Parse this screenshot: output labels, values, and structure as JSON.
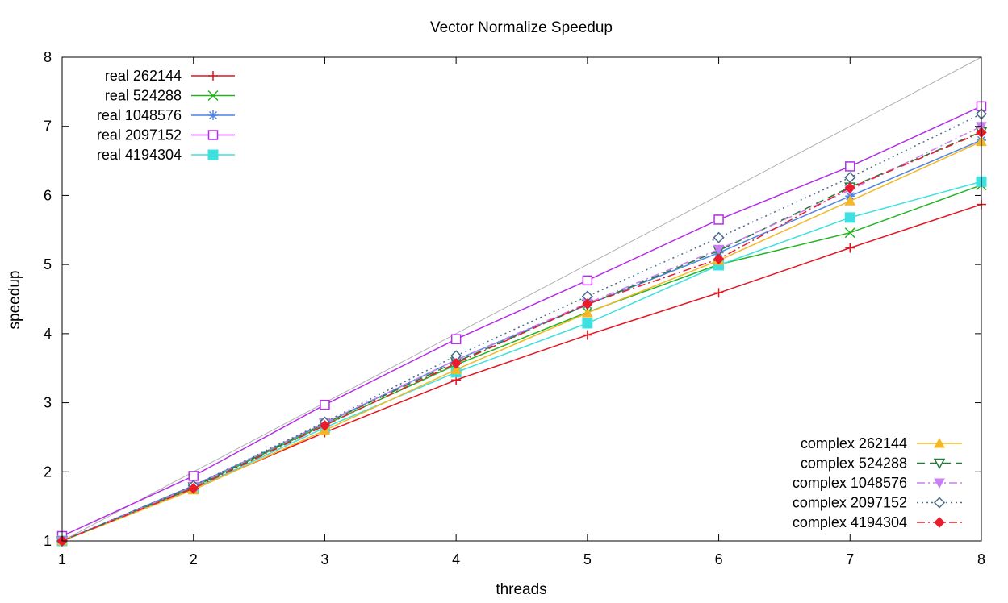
{
  "chart_data": {
    "type": "line",
    "title": "Vector Normalize Speedup",
    "xlabel": "threads",
    "ylabel": "speedup",
    "xlim": [
      1,
      8
    ],
    "ylim": [
      1,
      8
    ],
    "x": [
      1,
      2,
      3,
      4,
      5,
      6,
      7,
      8
    ],
    "xticks": [
      "1",
      "2",
      "3",
      "4",
      "5",
      "6",
      "7",
      "8"
    ],
    "yticks": [
      "1",
      "2",
      "3",
      "4",
      "5",
      "6",
      "7",
      "8"
    ],
    "grid": false,
    "reference_line": {
      "from": [
        1,
        1
      ],
      "to": [
        8,
        8
      ],
      "color": "#b0b0b0"
    },
    "legends": [
      {
        "position": "top-left",
        "series": [
          0,
          1,
          2,
          3,
          4
        ]
      },
      {
        "position": "bottom-right",
        "series": [
          5,
          6,
          7,
          8,
          9
        ]
      }
    ],
    "series": [
      {
        "name": "real 262144",
        "color": "#e3141d",
        "marker": "plus",
        "dash": "solid",
        "values": [
          1.0,
          1.76,
          2.57,
          3.33,
          3.98,
          4.59,
          5.24,
          5.87
        ]
      },
      {
        "name": "real 524288",
        "color": "#22b322",
        "marker": "cross",
        "dash": "solid",
        "values": [
          1.0,
          1.78,
          2.68,
          3.55,
          4.31,
          5.0,
          5.46,
          6.15
        ]
      },
      {
        "name": "real 1048576",
        "color": "#4d84e3",
        "marker": "star",
        "dash": "solid",
        "values": [
          1.0,
          1.8,
          2.7,
          3.62,
          4.42,
          5.17,
          5.99,
          6.8
        ]
      },
      {
        "name": "real 2097152",
        "color": "#b32ee6",
        "marker": "square-open",
        "dash": "solid",
        "values": [
          1.07,
          1.94,
          2.97,
          3.92,
          4.77,
          5.65,
          6.42,
          7.29
        ]
      },
      {
        "name": "real 4194304",
        "color": "#3fe0e0",
        "marker": "square-filled",
        "dash": "solid",
        "values": [
          1.0,
          1.75,
          2.64,
          3.44,
          4.15,
          4.99,
          5.68,
          6.2
        ]
      },
      {
        "name": "complex 262144",
        "color": "#f5b724",
        "marker": "triangle-up",
        "dash": "solid",
        "values": [
          1.0,
          1.74,
          2.6,
          3.48,
          4.3,
          5.06,
          5.92,
          6.78
        ]
      },
      {
        "name": "complex 524288",
        "color": "#237a3a",
        "marker": "triangle-down-open",
        "dash": "dashed",
        "values": [
          1.0,
          1.78,
          2.7,
          3.59,
          4.42,
          5.2,
          6.12,
          6.92
        ]
      },
      {
        "name": "complex 1048576",
        "color": "#c97ff0",
        "marker": "triangle-down",
        "dash": "dashdot",
        "values": [
          1.0,
          1.79,
          2.71,
          3.62,
          4.44,
          5.22,
          6.08,
          7.0
        ]
      },
      {
        "name": "complex 2097152",
        "color": "#4a6a8a",
        "marker": "diamond-open",
        "dash": "dotted",
        "values": [
          1.0,
          1.8,
          2.72,
          3.68,
          4.54,
          5.39,
          6.26,
          7.18
        ]
      },
      {
        "name": "complex 4194304",
        "color": "#ea1c2c",
        "marker": "diamond-filled",
        "dash": "dashdot",
        "values": [
          1.0,
          1.76,
          2.67,
          3.57,
          4.43,
          5.08,
          6.11,
          6.91
        ]
      }
    ]
  }
}
